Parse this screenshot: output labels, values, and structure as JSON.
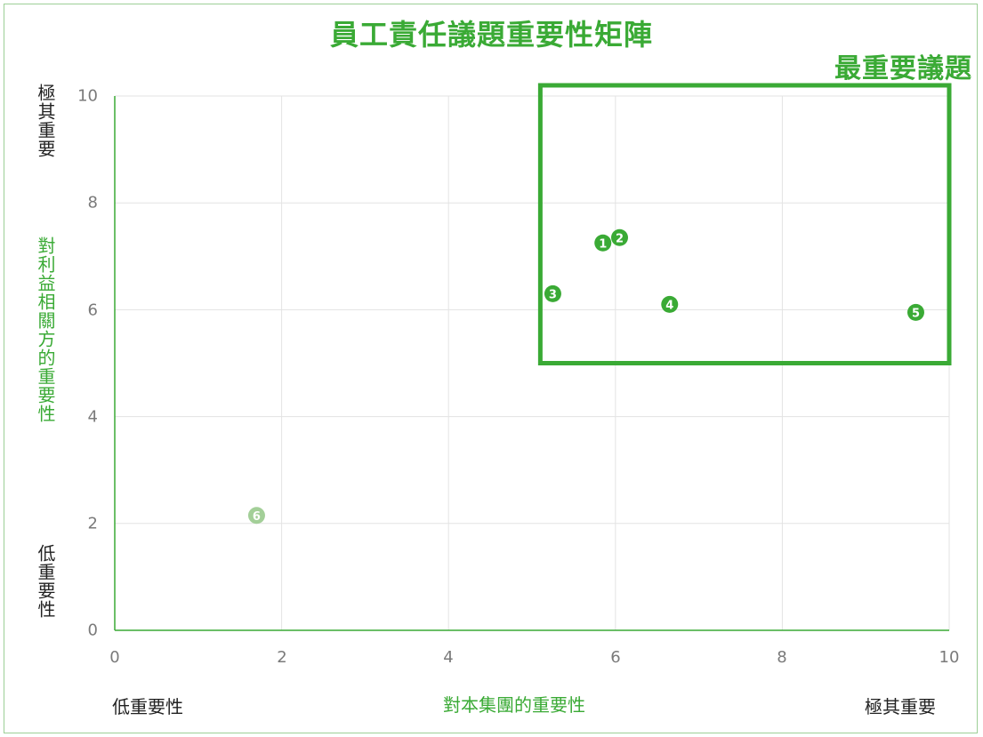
{
  "chart_data": {
    "type": "scatter",
    "title": "員工責任議題重要性矩陣",
    "xlabel": "對本集團的重要性",
    "ylabel": "對利益相關方的重要性",
    "xlim": [
      0,
      10
    ],
    "ylim": [
      0,
      10
    ],
    "x_ticks": [
      "0",
      "2",
      "4",
      "6",
      "8",
      "10"
    ],
    "y_ticks": [
      "0",
      "2",
      "4",
      "6",
      "8",
      "10"
    ],
    "grid": true,
    "x_low_label": "低重要性",
    "x_high_label": "極其重要",
    "y_low_label": "低重要性",
    "y_high_label": "極其重要",
    "highlight_region": {
      "label": "最重要議題",
      "x_range": [
        5.1,
        10.0
      ],
      "y_range": [
        5.0,
        10.2
      ]
    },
    "points": [
      {
        "label": "1",
        "glyph": "❶",
        "x": 5.85,
        "y": 7.25,
        "color": "#3aaa35"
      },
      {
        "label": "2",
        "glyph": "❷",
        "x": 6.05,
        "y": 7.35,
        "color": "#3aaa35"
      },
      {
        "label": "3",
        "glyph": "❸",
        "x": 5.25,
        "y": 6.3,
        "color": "#3aaa35"
      },
      {
        "label": "4",
        "glyph": "❹",
        "x": 6.65,
        "y": 6.1,
        "color": "#3aaa35"
      },
      {
        "label": "5",
        "glyph": "❺",
        "x": 9.6,
        "y": 5.95,
        "color": "#3aaa35"
      },
      {
        "label": "6",
        "glyph": "❻",
        "x": 1.7,
        "y": 2.15,
        "color": "#a3cf98"
      }
    ],
    "colors": {
      "accent": "#3aaa35",
      "grid": "#e3e3e3",
      "light_point": "#a3cf98",
      "axis_text": "#7a7a7a"
    }
  }
}
